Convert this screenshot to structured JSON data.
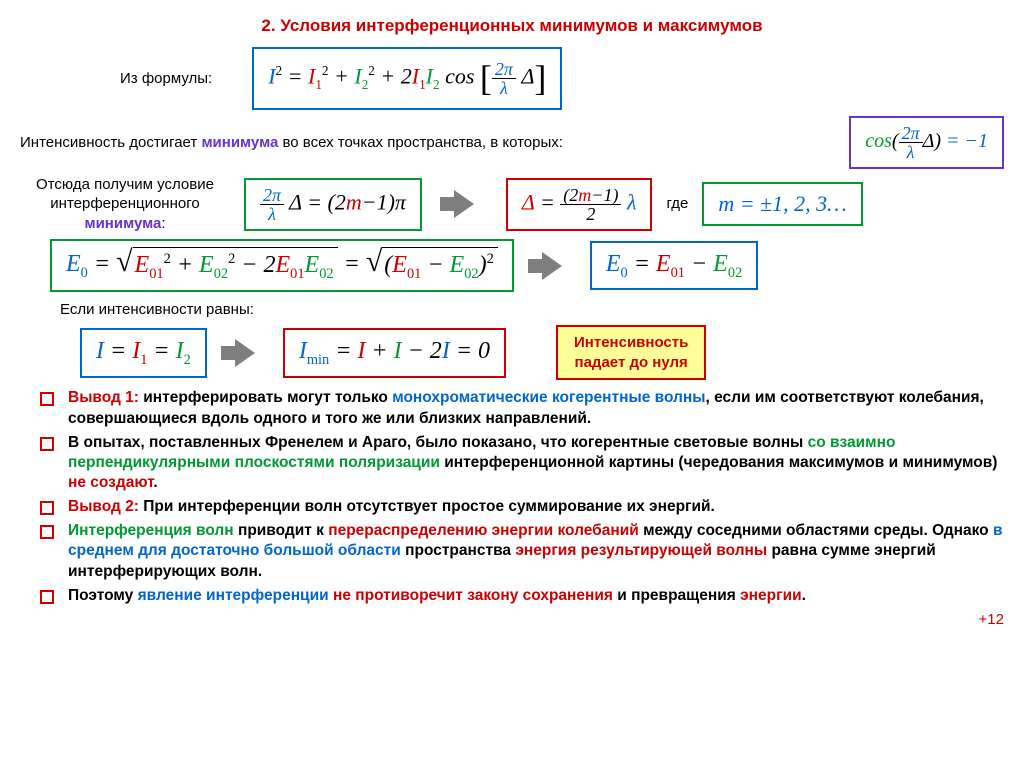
{
  "title": "2. Условия интерференционных минимумов и максимумов",
  "line1_label": "Из формулы:",
  "line2_pre": "Интенсивность достигает ",
  "line2_min": "минимума",
  "line2_post": " во всех точках пространства, в которых:",
  "cond_label_l1": "Отсюда получим условие",
  "cond_label_l2": "интерференционного",
  "cond_label_l3": "минимума",
  "where": "где",
  "eq_label": "Если интенсивности равны:",
  "callout_l1": "Интенсивность",
  "callout_l2": "падает до нуля",
  "bullets": [
    {
      "parts": [
        {
          "c": "t-red",
          "t": "Вывод 1: "
        },
        {
          "c": "t-black",
          "t": "интерферировать могут только "
        },
        {
          "c": "t-blue",
          "t": "монохроматические когерентные волны"
        },
        {
          "c": "t-black",
          "t": ", если им соответствуют колебания, совершающиеся вдоль одного и того же или близких направлений."
        }
      ]
    },
    {
      "parts": [
        {
          "c": "t-black",
          "t": "В опытах, поставленных Френелем и Араго, было показано, что когерентные световые волны "
        },
        {
          "c": "t-green",
          "t": "со взаимно перпендикулярными плоскостями поляризации "
        },
        {
          "c": "t-black",
          "t": "интерференционной картины (чередования максимумов и минимумов) "
        },
        {
          "c": "t-red",
          "t": "не создают"
        },
        {
          "c": "t-black",
          "t": "."
        }
      ]
    },
    {
      "parts": [
        {
          "c": "t-red",
          "t": "Вывод 2: "
        },
        {
          "c": "t-black",
          "t": "При интерференции волн отсутствует простое суммирование их энергий."
        }
      ]
    },
    {
      "parts": [
        {
          "c": "t-green",
          "t": "Интерференция волн "
        },
        {
          "c": "t-black",
          "t": "приводит к "
        },
        {
          "c": "t-red",
          "t": "перераспределению энергии колебаний "
        },
        {
          "c": "t-black",
          "t": "между соседними областями среды. Однако "
        },
        {
          "c": "t-blue",
          "t": "в среднем для достаточно большой области "
        },
        {
          "c": "t-black",
          "t": "пространства "
        },
        {
          "c": "t-red",
          "t": "энергия результирующей волны "
        },
        {
          "c": "t-black",
          "t": "равна сумме энергий интерферирующих волн."
        }
      ]
    },
    {
      "parts": [
        {
          "c": "t-black",
          "t": "Поэтому "
        },
        {
          "c": "t-blue",
          "t": "явление интерференции "
        },
        {
          "c": "t-red",
          "t": "не противоречит закону сохранения "
        },
        {
          "c": "t-black",
          "t": "и превращения "
        },
        {
          "c": "t-red",
          "t": "энергии"
        },
        {
          "c": "t-black",
          "t": "."
        }
      ]
    }
  ],
  "pagenum": "+12",
  "colors": {
    "red": "#cc0000",
    "blue": "#0066cc",
    "green": "#009933",
    "purple": "#6633cc",
    "yellow_bg": "#ffff99",
    "arrow": "#7f7f7f"
  },
  "formulas": {
    "intensity_sq": "I² = I₁² + I₂² + 2I₁I₂ cos[(2π/λ)Δ]",
    "cos_neg1": "cos((2π/λ)Δ) = −1",
    "phase_cond": "(2π/λ)Δ = (2m−1)π",
    "delta_cond": "Δ = ((2m−1)/2)λ",
    "m_vals": "m = ±1, 2, 3…",
    "e0_expanded": "E₀ = √(E₀₁² + E₀₂² − 2E₀₁E₀₂) = √((E₀₁ − E₀₂)²)",
    "e0_simple": "E₀ = E₀₁ − E₀₂",
    "i_equal": "I = I₁ = I₂",
    "imin": "Iₘᵢₙ = I + I − 2I = 0"
  }
}
